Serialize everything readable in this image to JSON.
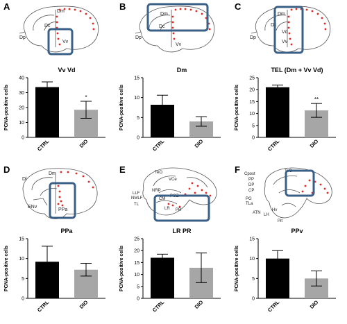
{
  "panels": [
    {
      "letter": "A",
      "brain_labels": [
        "Dm",
        "Dc",
        "Dp",
        "Vv"
      ]
    },
    {
      "letter": "B",
      "brain_labels": [
        "Dm",
        "Dc",
        "Dp",
        "Vv"
      ]
    },
    {
      "letter": "C",
      "brain_labels": [
        "Dm",
        "Dc",
        "Dp",
        "Vd",
        "Vv"
      ]
    },
    {
      "letter": "D",
      "brain_labels": [
        "Dl",
        "Dm",
        "ENv",
        "PPa"
      ]
    },
    {
      "letter": "E",
      "brain_labels": [
        "TeO",
        "VCe",
        "LLF",
        "NMLF",
        "TL",
        "CM",
        "PGZ",
        "NRP",
        "LR",
        "PR"
      ]
    },
    {
      "letter": "F",
      "brain_labels": [
        "Cpost",
        "PP",
        "DP",
        "CP",
        "TeO",
        "PG",
        "TLa",
        "ATN",
        "LH",
        "Hv",
        "Pit"
      ]
    }
  ],
  "colors": {
    "ctrl": "#000000",
    "dio": "#a6a6a6",
    "roi_box": "#3b6087",
    "cells": "#e0281e"
  },
  "chart_data": [
    {
      "type": "bar",
      "title": "Vv Vd",
      "ylabel": "PCNA-positive cells",
      "categories": [
        "CTRL",
        "DIO"
      ],
      "values": [
        33.7,
        18.5
      ],
      "errors": [
        3.5,
        5.7
      ],
      "ylim": [
        0,
        40
      ],
      "yticks": [
        0,
        10,
        20,
        30,
        40
      ],
      "significance": [
        "",
        "*"
      ]
    },
    {
      "type": "bar",
      "title": "Dm",
      "ylabel": "PCNA-positive cells",
      "categories": [
        "CTRL",
        "DIO"
      ],
      "values": [
        8.2,
        4.0
      ],
      "errors": [
        2.4,
        1.2
      ],
      "ylim": [
        0,
        15
      ],
      "yticks": [
        0,
        5,
        10,
        15
      ],
      "significance": [
        "",
        ""
      ]
    },
    {
      "type": "bar",
      "title": "TEL (Dm + Vv Vd)",
      "ylabel": "PCNA-positive cells",
      "categories": [
        "CTRL",
        "DIO"
      ],
      "values": [
        21.0,
        11.3
      ],
      "errors": [
        0.9,
        2.9
      ],
      "ylim": [
        0,
        25
      ],
      "yticks": [
        0,
        5,
        10,
        15,
        20,
        25
      ],
      "significance": [
        "",
        "**"
      ]
    },
    {
      "type": "bar",
      "title": "PPa",
      "ylabel": "PCNA-positive cells",
      "categories": [
        "CTRL",
        "DIO"
      ],
      "values": [
        9.2,
        7.2
      ],
      "errors": [
        3.9,
        1.6
      ],
      "ylim": [
        0,
        15
      ],
      "yticks": [
        0,
        5,
        10,
        15
      ],
      "significance": [
        "",
        ""
      ]
    },
    {
      "type": "bar",
      "title": "LR PR",
      "ylabel": "PCNA-positive cells",
      "categories": [
        "CTRL",
        "DIO"
      ],
      "values": [
        17.0,
        12.8
      ],
      "errors": [
        1.5,
        6.2
      ],
      "ylim": [
        0,
        25
      ],
      "yticks": [
        0,
        5,
        10,
        15,
        20,
        25
      ],
      "significance": [
        "",
        ""
      ]
    },
    {
      "type": "bar",
      "title": "PPv",
      "ylabel": "PCNA-positive cells",
      "categories": [
        "CTRL",
        "DIO"
      ],
      "values": [
        10.0,
        5.0
      ],
      "errors": [
        2.0,
        1.9
      ],
      "ylim": [
        0,
        15
      ],
      "yticks": [
        0,
        5,
        10,
        15
      ],
      "significance": [
        "",
        ""
      ]
    }
  ]
}
